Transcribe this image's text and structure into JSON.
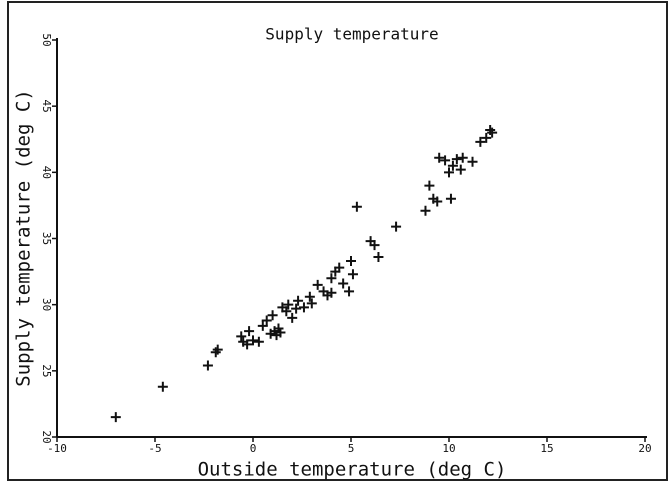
{
  "chart_data": {
    "type": "scatter",
    "title": "Supply temperature",
    "xlabel": "Outside temperature (deg C)",
    "ylabel": "Supply temperature (deg C)",
    "xlim": [
      -10,
      20
    ],
    "xticks": [
      -10,
      -5,
      0,
      5,
      10,
      15,
      20
    ],
    "ylim": [
      20,
      50
    ],
    "yticks": [
      20,
      25,
      30,
      35,
      40,
      45,
      50
    ],
    "color": "#111111",
    "x": [
      -7,
      -4.6,
      -2.3,
      -1.9,
      -1.8,
      -0.6,
      -0.5,
      -0.3,
      0,
      0.3,
      0.5,
      0.7,
      0.9,
      1.1,
      1.2,
      1.3,
      1.0,
      1.5,
      1.7,
      2.0,
      2.2,
      2.3,
      2.6,
      2.9,
      3.0,
      3.3,
      3.6,
      3.8,
      4.0,
      4.0,
      4.2,
      4.4,
      4.6,
      4.9,
      5.0,
      5.1,
      5.3,
      6.0,
      6.2,
      6.4,
      7.3,
      8.8,
      9.0,
      9.2,
      9.4,
      9.5,
      9.8,
      10.0,
      10.1,
      10.2,
      10.4,
      10.6,
      10.7,
      11.2,
      11.6,
      11.9,
      12.1,
      12.2,
      1.8,
      1.4,
      -0.2
    ],
    "values": [
      21.5,
      23.8,
      25.4,
      26.4,
      26.6,
      27.6,
      27.2,
      27.0,
      27.3,
      27.2,
      28.4,
      28.8,
      27.8,
      28.0,
      27.7,
      28.2,
      29.2,
      29.8,
      29.5,
      29.0,
      29.7,
      30.3,
      29.8,
      30.6,
      30.1,
      31.5,
      31.0,
      30.7,
      30.9,
      32.0,
      32.5,
      32.8,
      31.6,
      31.0,
      33.3,
      32.3,
      37.4,
      34.8,
      34.5,
      33.6,
      35.9,
      37.1,
      39.0,
      38.0,
      37.8,
      41.1,
      40.9,
      40.0,
      38.0,
      40.5,
      41.0,
      40.2,
      41.1,
      40.8,
      42.3,
      42.6,
      43.2,
      43.0,
      30.0,
      27.9,
      28.0
    ]
  }
}
